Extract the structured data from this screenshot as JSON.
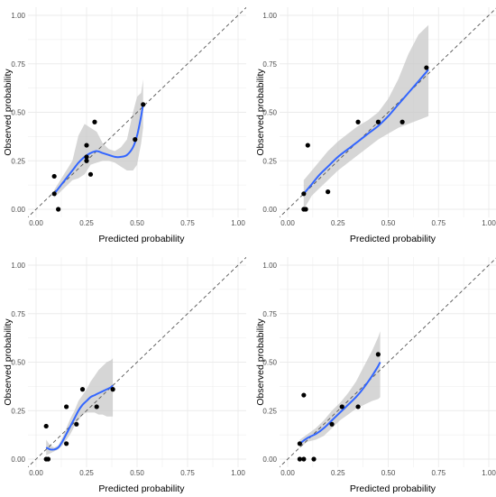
{
  "colors": {
    "background": "#ffffff",
    "grid": "#ebebeb",
    "smooth_line": "#3366ff",
    "ribbon": "#c8c8c8",
    "points": "#000000",
    "reference_line": "#555555"
  },
  "chart_data": [
    {
      "type": "scatter",
      "xlabel": "Predicted probability",
      "ylabel": "Observed probability",
      "xlim": [
        0,
        1
      ],
      "ylim": [
        0,
        1
      ],
      "xticks": [
        "0.00",
        "0.25",
        "0.50",
        "0.75",
        "1.00"
      ],
      "yticks": [
        "0.00",
        "0.25",
        "0.50",
        "0.75",
        "1.00"
      ],
      "grid": true,
      "reference_line": "identity (dashed)",
      "points": [
        {
          "x": 0.09,
          "y": 0.17
        },
        {
          "x": 0.09,
          "y": 0.08
        },
        {
          "x": 0.11,
          "y": 0.0
        },
        {
          "x": 0.25,
          "y": 0.33
        },
        {
          "x": 0.25,
          "y": 0.25
        },
        {
          "x": 0.25,
          "y": 0.27
        },
        {
          "x": 0.27,
          "y": 0.18
        },
        {
          "x": 0.29,
          "y": 0.45
        },
        {
          "x": 0.49,
          "y": 0.36
        },
        {
          "x": 0.53,
          "y": 0.54
        }
      ],
      "smooth": {
        "x": [
          0.09,
          0.12,
          0.15,
          0.18,
          0.21,
          0.24,
          0.27,
          0.3,
          0.33,
          0.36,
          0.39,
          0.42,
          0.45,
          0.48,
          0.5,
          0.52,
          0.53
        ],
        "y": [
          0.08,
          0.12,
          0.16,
          0.2,
          0.24,
          0.27,
          0.29,
          0.3,
          0.29,
          0.28,
          0.27,
          0.27,
          0.28,
          0.32,
          0.38,
          0.48,
          0.54
        ],
        "lower": [
          0.06,
          0.09,
          0.12,
          0.15,
          0.16,
          0.18,
          0.23,
          0.24,
          0.25,
          0.25,
          0.24,
          0.22,
          0.2,
          0.2,
          0.23,
          0.34,
          0.42
        ],
        "upper": [
          0.1,
          0.15,
          0.2,
          0.25,
          0.38,
          0.44,
          0.42,
          0.4,
          0.34,
          0.31,
          0.3,
          0.32,
          0.36,
          0.5,
          0.58,
          0.6,
          0.67
        ]
      }
    },
    {
      "type": "scatter",
      "xlabel": "Predicted probability",
      "ylabel": "Observed probability",
      "xlim": [
        0,
        1
      ],
      "ylim": [
        0,
        1
      ],
      "xticks": [
        "0.00",
        "0.25",
        "0.50",
        "0.75",
        "1.00"
      ],
      "yticks": [
        "0.00",
        "0.25",
        "0.50",
        "0.75",
        "1.00"
      ],
      "grid": true,
      "reference_line": "identity (dashed)",
      "points": [
        {
          "x": 0.08,
          "y": 0.0
        },
        {
          "x": 0.09,
          "y": 0.0
        },
        {
          "x": 0.08,
          "y": 0.08
        },
        {
          "x": 0.1,
          "y": 0.33
        },
        {
          "x": 0.2,
          "y": 0.09
        },
        {
          "x": 0.35,
          "y": 0.45
        },
        {
          "x": 0.45,
          "y": 0.45
        },
        {
          "x": 0.57,
          "y": 0.45
        },
        {
          "x": 0.69,
          "y": 0.73
        }
      ],
      "smooth": {
        "x": [
          0.08,
          0.12,
          0.16,
          0.2,
          0.25,
          0.3,
          0.35,
          0.4,
          0.45,
          0.5,
          0.55,
          0.6,
          0.65,
          0.7
        ],
        "y": [
          0.08,
          0.13,
          0.18,
          0.22,
          0.27,
          0.31,
          0.35,
          0.39,
          0.43,
          0.48,
          0.54,
          0.6,
          0.66,
          0.72
        ],
        "lower": [
          0.0,
          0.07,
          0.11,
          0.15,
          0.2,
          0.24,
          0.28,
          0.32,
          0.36,
          0.39,
          0.42,
          0.44,
          0.46,
          0.48
        ],
        "upper": [
          0.15,
          0.2,
          0.25,
          0.3,
          0.35,
          0.39,
          0.43,
          0.46,
          0.5,
          0.57,
          0.67,
          0.8,
          0.9,
          0.95
        ]
      }
    },
    {
      "type": "scatter",
      "xlabel": "Predicted probability",
      "ylabel": "Observed probability",
      "xlim": [
        0,
        1
      ],
      "ylim": [
        0,
        1
      ],
      "xticks": [
        "0.00",
        "0.25",
        "0.50",
        "0.75",
        "1.00"
      ],
      "yticks": [
        "0.00",
        "0.25",
        "0.50",
        "0.75",
        "1.00"
      ],
      "grid": true,
      "reference_line": "identity (dashed)",
      "points": [
        {
          "x": 0.05,
          "y": 0.17
        },
        {
          "x": 0.05,
          "y": 0.0
        },
        {
          "x": 0.06,
          "y": 0.0
        },
        {
          "x": 0.15,
          "y": 0.27
        },
        {
          "x": 0.15,
          "y": 0.08
        },
        {
          "x": 0.2,
          "y": 0.18
        },
        {
          "x": 0.23,
          "y": 0.36
        },
        {
          "x": 0.3,
          "y": 0.27
        },
        {
          "x": 0.38,
          "y": 0.36
        }
      ],
      "smooth": {
        "x": [
          0.05,
          0.07,
          0.09,
          0.11,
          0.13,
          0.15,
          0.17,
          0.19,
          0.21,
          0.23,
          0.25,
          0.27,
          0.29,
          0.31,
          0.33,
          0.35,
          0.37,
          0.38
        ],
        "y": [
          0.06,
          0.05,
          0.05,
          0.06,
          0.09,
          0.13,
          0.17,
          0.21,
          0.25,
          0.28,
          0.3,
          0.32,
          0.33,
          0.34,
          0.35,
          0.36,
          0.37,
          0.38
        ],
        "lower": [
          0.02,
          0.03,
          0.04,
          0.05,
          0.07,
          0.1,
          0.13,
          0.17,
          0.2,
          0.23,
          0.24,
          0.24,
          0.24,
          0.23,
          0.23,
          0.22,
          0.22,
          0.22
        ],
        "upper": [
          0.1,
          0.07,
          0.06,
          0.07,
          0.11,
          0.16,
          0.21,
          0.25,
          0.3,
          0.33,
          0.36,
          0.4,
          0.43,
          0.46,
          0.48,
          0.5,
          0.51,
          0.52
        ]
      }
    },
    {
      "type": "scatter",
      "xlabel": "Predicted probability",
      "ylabel": "Observed probability",
      "xlim": [
        0,
        1
      ],
      "ylim": [
        0,
        1
      ],
      "xticks": [
        "0.00",
        "0.25",
        "0.50",
        "0.75",
        "1.00"
      ],
      "yticks": [
        "0.00",
        "0.25",
        "0.50",
        "0.75",
        "1.00"
      ],
      "grid": true,
      "reference_line": "identity (dashed)",
      "points": [
        {
          "x": 0.06,
          "y": 0.08
        },
        {
          "x": 0.06,
          "y": 0.0
        },
        {
          "x": 0.08,
          "y": 0.0
        },
        {
          "x": 0.08,
          "y": 0.33
        },
        {
          "x": 0.13,
          "y": 0.0
        },
        {
          "x": 0.22,
          "y": 0.18
        },
        {
          "x": 0.27,
          "y": 0.27
        },
        {
          "x": 0.35,
          "y": 0.27
        },
        {
          "x": 0.45,
          "y": 0.54
        }
      ],
      "smooth": {
        "x": [
          0.06,
          0.1,
          0.14,
          0.18,
          0.22,
          0.26,
          0.3,
          0.34,
          0.38,
          0.42,
          0.45,
          0.46
        ],
        "y": [
          0.08,
          0.11,
          0.13,
          0.16,
          0.2,
          0.24,
          0.28,
          0.32,
          0.37,
          0.43,
          0.48,
          0.5
        ],
        "lower": [
          0.06,
          0.09,
          0.1,
          0.12,
          0.16,
          0.2,
          0.23,
          0.26,
          0.28,
          0.3,
          0.31,
          0.32
        ],
        "upper": [
          0.1,
          0.13,
          0.16,
          0.2,
          0.25,
          0.29,
          0.34,
          0.4,
          0.48,
          0.56,
          0.63,
          0.66
        ]
      }
    }
  ]
}
